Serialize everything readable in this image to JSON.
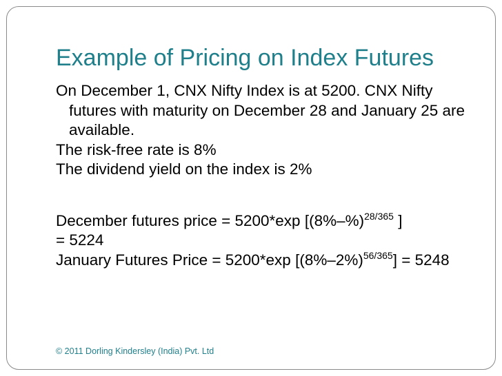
{
  "slide": {
    "title": "Example of Pricing on Index Futures",
    "lines": {
      "intro": "On December 1, CNX Nifty Index is at 5200. CNX Nifty futures with maturity on December 28 and January 25 are available.",
      "risk_free": "The risk-free rate is 8%",
      "dividend": "The dividend yield on the index is 2%",
      "dec_price_pre": "December futures price = 5200*exp [(8%–%)",
      "dec_price_exp": "28/365",
      "dec_price_post": " ]",
      "dec_result": "= 5224",
      "jan_price_pre": "January Futures Price = 5200*exp [(8%–2%)",
      "jan_price_exp": "56/365",
      "jan_price_post": "] = 5248"
    },
    "footer": "© 2011 Dorling Kindersley (India) Pvt. Ltd"
  },
  "colors": {
    "accent": "#1f7f8a",
    "frame": "#8a8a8a",
    "text": "#000000"
  }
}
